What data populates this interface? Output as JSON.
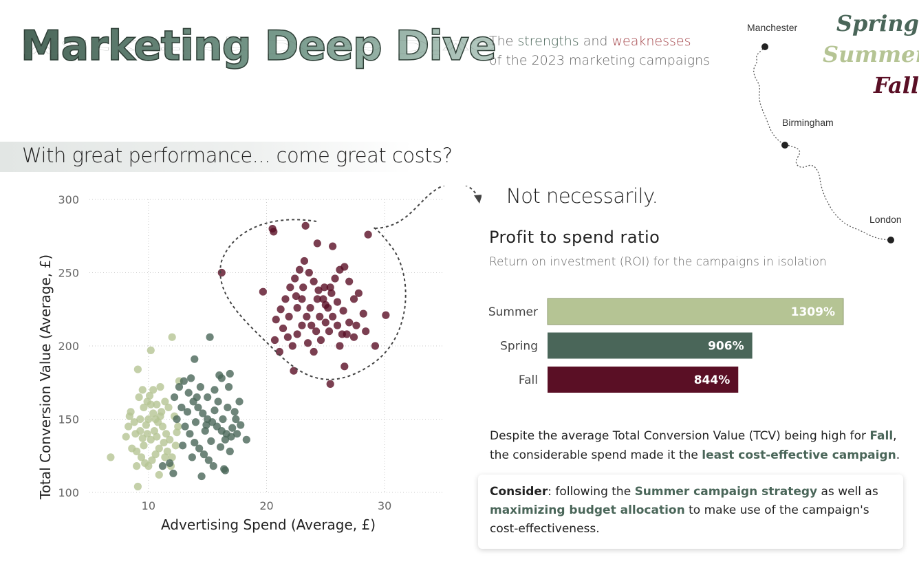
{
  "header": {
    "title": "Marketing Deep Dive",
    "subtitle_line1_pre": "The ",
    "subtitle_strengths": "strengths",
    "subtitle_and": " and ",
    "subtitle_weaknesses": "weaknesses",
    "subtitle_line2": "of the 2023 marketing campaigns"
  },
  "season_legend": [
    {
      "label": "Spring",
      "color": "#4a6659"
    },
    {
      "label": "Summer",
      "color": "#b5c494"
    },
    {
      "label": "Fall",
      "color": "#5a0f25"
    }
  ],
  "route_map": {
    "cities": [
      {
        "name": "Manchester"
      },
      {
        "name": "Birmingham"
      },
      {
        "name": "London"
      }
    ]
  },
  "section_heading": "With great performance... come great costs?",
  "callout": "Not necessarily.",
  "colors": {
    "spring": "#4a6659",
    "summer": "#b5c494",
    "fall": "#5a0f25",
    "accent_green": "#4a6659",
    "accent_red": "#a4454a"
  },
  "chart_data": [
    {
      "type": "scatter",
      "title": "",
      "xlabel": "Advertising Spend (Average, £)",
      "ylabel": "Total Conversion Value (Average, £)",
      "xlim": [
        5,
        35
      ],
      "ylim": [
        100,
        300
      ],
      "xticks": [
        10,
        20,
        30
      ],
      "yticks": [
        100,
        150,
        200,
        250,
        300
      ],
      "grid": true,
      "series": [
        {
          "color": "#b5c494",
          "points": [
            [
              9.1,
              104
            ],
            [
              10.2,
              197
            ],
            [
              12.0,
              206
            ],
            [
              6.8,
              124
            ],
            [
              8.3,
              145
            ],
            [
              8.9,
              140
            ],
            [
              9.3,
              150
            ],
            [
              9.6,
              158
            ],
            [
              9.9,
              162
            ],
            [
              10.1,
              166
            ],
            [
              10.4,
              170
            ],
            [
              10.7,
              160
            ],
            [
              11.0,
              152
            ],
            [
              11.2,
              145
            ],
            [
              11.5,
              140
            ],
            [
              11.8,
              136
            ],
            [
              8.6,
              130
            ],
            [
              9.0,
              128
            ],
            [
              9.4,
              124
            ],
            [
              9.7,
              120
            ],
            [
              10.0,
              118
            ],
            [
              10.3,
              122
            ],
            [
              10.6,
              126
            ],
            [
              10.9,
              130
            ],
            [
              11.3,
              134
            ],
            [
              11.6,
              128
            ],
            [
              12.0,
              124
            ],
            [
              8.1,
              138
            ],
            [
              8.5,
              155
            ],
            [
              9.2,
              165
            ],
            [
              9.5,
              170
            ],
            [
              9.8,
              146
            ],
            [
              10.5,
              142
            ],
            [
              10.8,
              148
            ],
            [
              11.1,
              155
            ],
            [
              11.4,
              162
            ],
            [
              11.7,
              158
            ],
            [
              12.2,
              152
            ],
            [
              12.5,
              145
            ],
            [
              10.2,
              136
            ],
            [
              9.6,
              132
            ],
            [
              9.3,
              142
            ],
            [
              8.8,
              148
            ],
            [
              10.0,
              150
            ],
            [
              10.7,
              138
            ],
            [
              11.4,
              124
            ],
            [
              12.3,
              132
            ],
            [
              12.6,
              176
            ],
            [
              9.1,
              184
            ],
            [
              10.4,
              154
            ],
            [
              11.0,
              172
            ],
            [
              9.0,
              118
            ],
            [
              10.9,
              112
            ],
            [
              8.4,
              152
            ],
            [
              9.9,
              140
            ],
            [
              10.2,
              160
            ],
            [
              11.9,
              118
            ],
            [
              12.4,
              141
            ],
            [
              9.5,
              137
            ],
            [
              10.6,
              150
            ]
          ]
        },
        {
          "color": "#4a6659",
          "points": [
            [
              15.2,
              206
            ],
            [
              13.9,
              191
            ],
            [
              12.2,
              165
            ],
            [
              12.6,
              172
            ],
            [
              13.0,
              176
            ],
            [
              13.4,
              168
            ],
            [
              13.8,
              162
            ],
            [
              14.2,
              158
            ],
            [
              14.6,
              154
            ],
            [
              15.0,
              150
            ],
            [
              15.4,
              148
            ],
            [
              15.8,
              145
            ],
            [
              16.2,
              142
            ],
            [
              16.6,
              140
            ],
            [
              17.0,
              138
            ],
            [
              17.4,
              150
            ],
            [
              17.8,
              146
            ],
            [
              18.3,
              136
            ],
            [
              13.1,
              145
            ],
            [
              13.5,
              140
            ],
            [
              13.9,
              134
            ],
            [
              14.3,
              130
            ],
            [
              14.7,
              126
            ],
            [
              15.1,
              122
            ],
            [
              15.5,
              118
            ],
            [
              16.1,
              131
            ],
            [
              16.5,
              136
            ],
            [
              16.9,
              128
            ],
            [
              17.3,
              155
            ],
            [
              17.7,
              162
            ],
            [
              16.8,
              172
            ],
            [
              16.2,
              178
            ],
            [
              15.6,
              170
            ],
            [
              15.0,
              165
            ],
            [
              14.4,
              172
            ],
            [
              13.6,
              178
            ],
            [
              12.8,
              158
            ],
            [
              12.4,
              150
            ],
            [
              11.8,
              120
            ],
            [
              11.2,
              118
            ],
            [
              12.1,
              113
            ],
            [
              14.5,
              111
            ],
            [
              16.4,
              116
            ],
            [
              16.9,
              181
            ],
            [
              16.0,
              180
            ],
            [
              14.0,
              148
            ],
            [
              14.8,
              142
            ],
            [
              15.6,
              156
            ],
            [
              16.3,
              150
            ],
            [
              17.1,
              144
            ],
            [
              13.3,
              155
            ],
            [
              12.9,
              132
            ],
            [
              15.3,
              135
            ],
            [
              16.7,
              158
            ],
            [
              17.5,
              140
            ],
            [
              14.1,
              165
            ],
            [
              15.9,
              162
            ],
            [
              13.7,
              124
            ],
            [
              16.5,
              115
            ],
            [
              14.9,
              146
            ]
          ]
        },
        {
          "color": "#5a0f25",
          "points": [
            [
              23.3,
              282
            ],
            [
              20.5,
              280
            ],
            [
              20.6,
              278
            ],
            [
              28.6,
              276
            ],
            [
              24.3,
              270
            ],
            [
              25.6,
              268
            ],
            [
              16.2,
              250
            ],
            [
              30.1,
              221
            ],
            [
              29.2,
              200
            ],
            [
              25.4,
              174
            ],
            [
              22.3,
              183
            ],
            [
              26.6,
              186
            ],
            [
              19.7,
              237
            ],
            [
              21.2,
              225
            ],
            [
              21.6,
              232
            ],
            [
              22.0,
              240
            ],
            [
              22.4,
              246
            ],
            [
              22.8,
              252
            ],
            [
              23.2,
              258
            ],
            [
              23.6,
              250
            ],
            [
              24.0,
              244
            ],
            [
              24.4,
              238
            ],
            [
              24.8,
              232
            ],
            [
              25.2,
              226
            ],
            [
              25.6,
              220
            ],
            [
              26.0,
              214
            ],
            [
              26.4,
              208
            ],
            [
              22.6,
              226
            ],
            [
              23.0,
              232
            ],
            [
              23.4,
              220
            ],
            [
              23.8,
              214
            ],
            [
              24.2,
              210
            ],
            [
              24.6,
              204
            ],
            [
              25.0,
              216
            ],
            [
              25.4,
              240
            ],
            [
              25.8,
              246
            ],
            [
              26.2,
              252
            ],
            [
              26.6,
              254
            ],
            [
              27.0,
              244
            ],
            [
              27.4,
              232
            ],
            [
              27.8,
              236
            ],
            [
              28.2,
              222
            ],
            [
              28.4,
              210
            ],
            [
              21.4,
              212
            ],
            [
              21.8,
              206
            ],
            [
              22.2,
              200
            ],
            [
              22.6,
              208
            ],
            [
              23.0,
              214
            ],
            [
              23.5,
              202
            ],
            [
              24.0,
              196
            ],
            [
              24.5,
              220
            ],
            [
              25.0,
              228
            ],
            [
              25.5,
              236
            ],
            [
              26.0,
              230
            ],
            [
              26.5,
              224
            ],
            [
              27.0,
              216
            ],
            [
              27.4,
              206
            ],
            [
              20.8,
              218
            ],
            [
              20.7,
              204
            ],
            [
              21.1,
              196
            ],
            [
              21.9,
              220
            ],
            [
              22.5,
              234
            ],
            [
              23.1,
              240
            ],
            [
              23.7,
              226
            ],
            [
              24.3,
              232
            ],
            [
              24.9,
              240
            ],
            [
              25.3,
              210
            ],
            [
              26.2,
              200
            ],
            [
              26.8,
              208
            ],
            [
              27.6,
              214
            ]
          ]
        }
      ]
    },
    {
      "type": "bar",
      "orientation": "horizontal",
      "title": "Profit to spend ratio",
      "subtitle": "Return on investment (ROI) for the campaigns in isolation",
      "categories": [
        "Summer",
        "Spring",
        "Fall"
      ],
      "values": [
        1309,
        906,
        844
      ],
      "value_labels": [
        "1309%",
        "906%",
        "844%"
      ],
      "colors": [
        "#b5c494",
        "#4a6659",
        "#5a0f25"
      ],
      "unit": "%"
    }
  ],
  "insight": {
    "p1": "Despite the average Total Conversion Value (TCV) being high for ",
    "fall": "Fall",
    "p2": ",",
    "p3": "the considerable spend made it the ",
    "least": "least cost-effective campaign",
    "p4": "."
  },
  "consider": {
    "label": "Consider",
    "p1": ": following the ",
    "summer": "Summer campaign strategy",
    "p2": " as well as",
    "budget": "maximizing budget allocation",
    "p3": " to make use of the campaign's cost-effectiveness."
  }
}
